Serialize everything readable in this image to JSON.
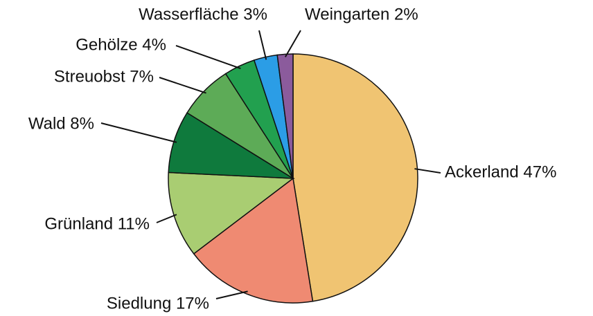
{
  "chart_data": {
    "type": "pie",
    "values": [
      47,
      17,
      11,
      8,
      7,
      4,
      3,
      2
    ],
    "value_labels": [
      "Ackerland 47%",
      "Siedlung 17%",
      "Grünland 11%",
      "Wald 8%",
      "Streuobst 7%",
      "Gehölze 4%",
      "Wasserfläche 3%",
      "Weingarten 2%"
    ],
    "colors": [
      "#f0c472",
      "#ef8a72",
      "#a9cd72",
      "#0f7a3d",
      "#5dab57",
      "#22a04f",
      "#2b9de6",
      "#8b5b9c"
    ]
  }
}
